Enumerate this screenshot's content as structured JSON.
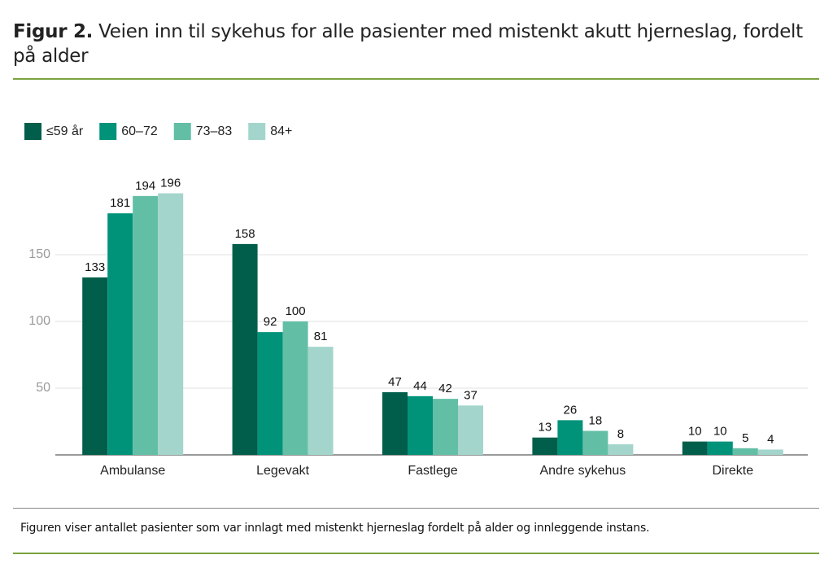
{
  "chart_data": {
    "type": "bar",
    "figure_label": "Figur 2.",
    "title": "Veien inn til sykehus for alle pasienter med mistenkt akutt hjerneslag, fordelt på alder",
    "note": "Figuren viser antallet pasienter som var innlagt med mistenkt hjerneslag fordelt på alder og innleggende instans.",
    "categories": [
      "Ambulanse",
      "Legevakt",
      "Fastlege",
      "Andre sykehus",
      "Direkte"
    ],
    "series": [
      {
        "name": "≤59 år",
        "color": "#005e4a",
        "values": [
          133,
          158,
          47,
          13,
          10
        ]
      },
      {
        "name": "60–72",
        "color": "#00937a",
        "values": [
          181,
          92,
          44,
          26,
          10
        ]
      },
      {
        "name": "73–83",
        "color": "#62bfa6",
        "values": [
          194,
          100,
          42,
          18,
          5
        ]
      },
      {
        "name": "84+",
        "color": "#a3d5cc",
        "values": [
          196,
          81,
          37,
          8,
          4
        ]
      }
    ],
    "ylim": [
      0,
      200
    ],
    "yticks": [
      50,
      100,
      150
    ],
    "grid": true,
    "legend": "top-left"
  }
}
